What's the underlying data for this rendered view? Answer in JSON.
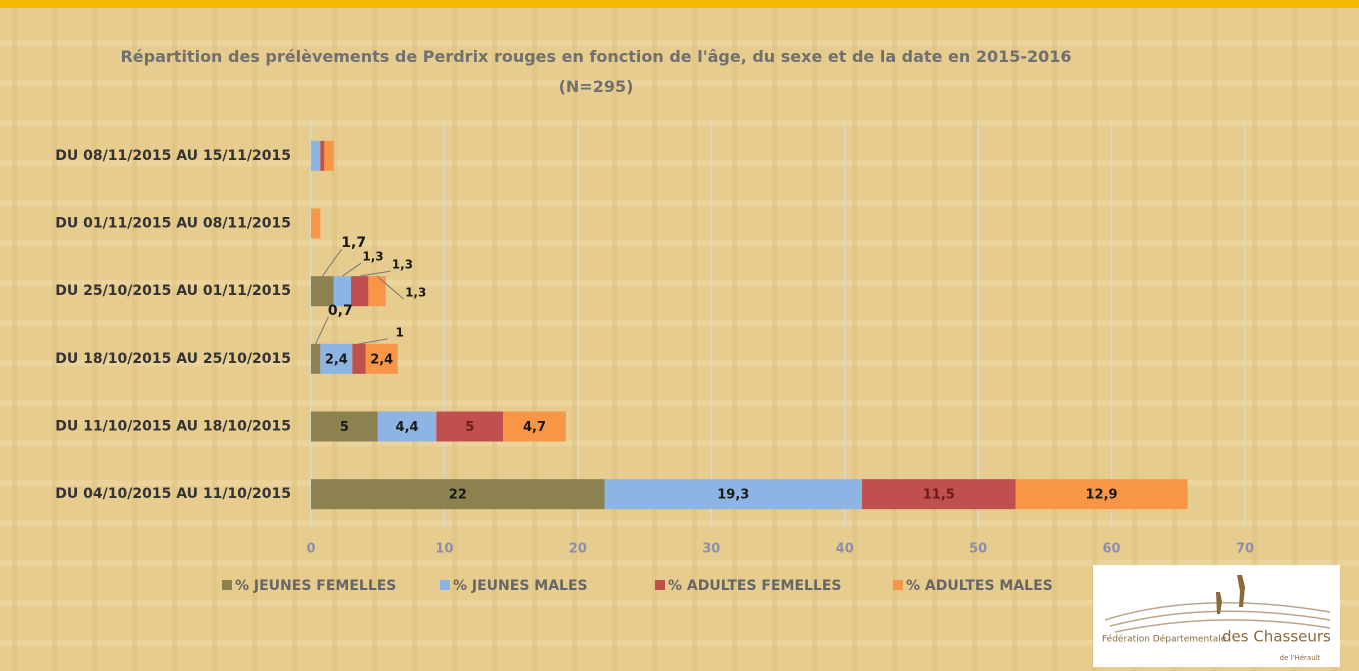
{
  "chart_data": {
    "type": "stacked-barh",
    "title": "Répartition des prélèvements de Perdrix rouges en fonction de l'âge, du sexe et de la date en 2015-2016 (N=295)",
    "categories": [
      "DU 08/11/2015 AU 15/11/2015",
      "DU 01/11/2015 AU 08/11/2015",
      "DU 25/10/2015 AU 01/11/2015",
      "DU 18/10/2015 AU 25/10/2015",
      "DU 11/10/2015 AU 18/10/2015",
      "DU 04/10/2015 AU 11/10/2015"
    ],
    "series": [
      {
        "name": "% JEUNES FEMELLES",
        "color": "#8b8250",
        "values": [
          0,
          0,
          1.7,
          0.7,
          5,
          22
        ],
        "value_labels": [
          null,
          null,
          "1,7",
          "0,7",
          "5",
          "22"
        ]
      },
      {
        "name": "% JEUNES MALES",
        "color": "#8db4e2",
        "values": [
          0.7,
          0,
          1.3,
          2.4,
          4.4,
          19.3
        ],
        "value_labels": [
          null,
          null,
          "1,3",
          "2,4",
          "4,4",
          "19,3"
        ]
      },
      {
        "name": "% ADULTES FEMELLES",
        "color": "#c0504d",
        "values": [
          0.3,
          0,
          1.3,
          1,
          5,
          11.5
        ],
        "value_labels": [
          null,
          null,
          "1,3",
          "1",
          "5",
          "11,5"
        ]
      },
      {
        "name": "% ADULTES MALES",
        "color": "#f79646",
        "values": [
          0.7,
          0.7,
          1.3,
          2.4,
          4.7,
          12.9
        ],
        "value_labels": [
          null,
          null,
          "1,3",
          "2,4",
          "4,7",
          "12,9"
        ]
      }
    ],
    "xlim": [
      0,
      70
    ],
    "xticks": [
      0,
      10,
      20,
      30,
      40,
      50,
      60,
      70
    ],
    "grid": true,
    "legend": "bottom"
  },
  "logo": {
    "line1": "Fédération Départementale",
    "line2": "des Chasseurs",
    "line3": "de l'Hérault"
  }
}
